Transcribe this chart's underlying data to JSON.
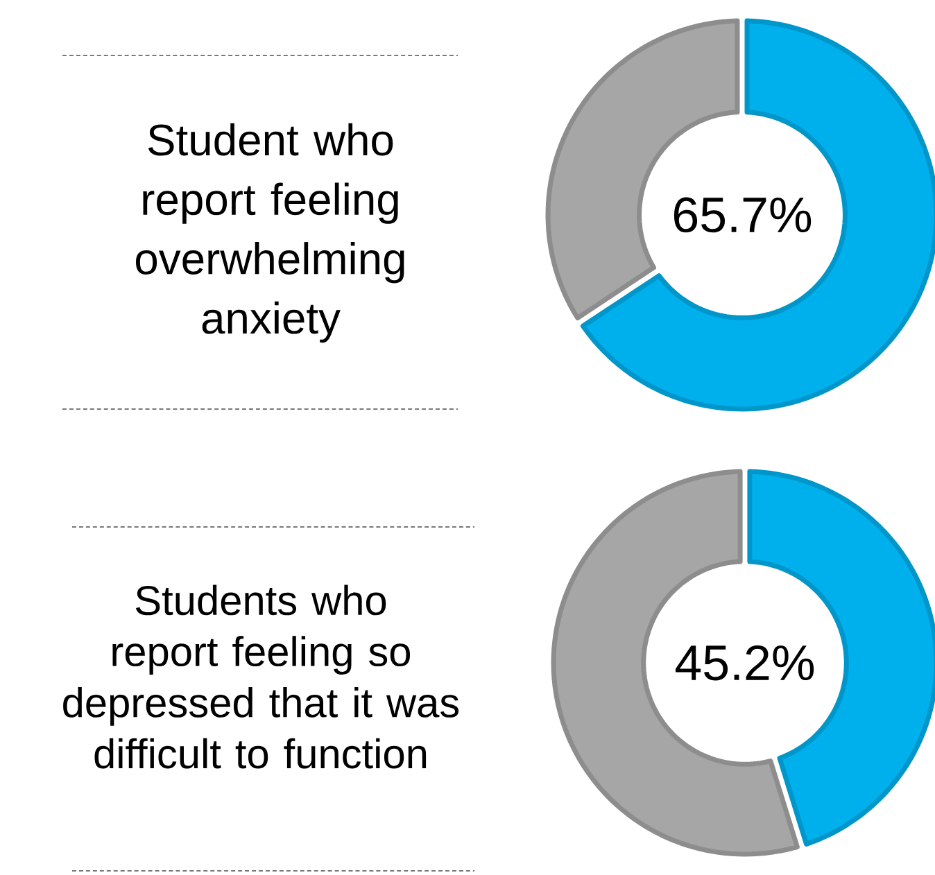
{
  "chart_data": [
    {
      "type": "donut",
      "title": "Student who report feeling overwhelming anxiety",
      "categories": [
        null,
        null
      ],
      "values": [
        65.7,
        34.3
      ],
      "colors": [
        "#00b0ec",
        "#a6a6a6"
      ],
      "annotations": [
        "65.7%"
      ]
    },
    {
      "type": "donut",
      "title": "Students who report feeling so depressed that it was difficult to function",
      "categories": [
        null,
        null
      ],
      "values": [
        45.2,
        54.8
      ],
      "colors": [
        "#00b0ec",
        "#a6a6a6"
      ],
      "annotations": [
        "45.2%"
      ]
    }
  ]
}
